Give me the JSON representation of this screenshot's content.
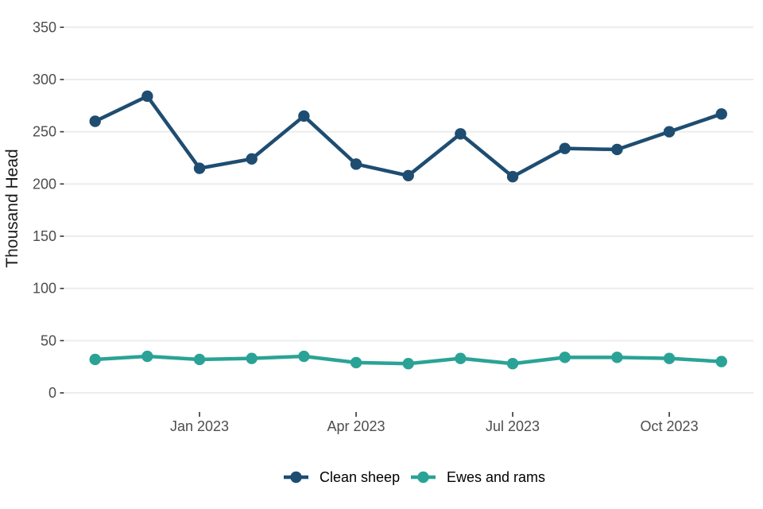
{
  "chart_data": {
    "type": "line",
    "title": "",
    "xlabel": "",
    "ylabel": "Thousand Head",
    "ylim": [
      0,
      350
    ],
    "yticks": [
      0,
      50,
      100,
      150,
      200,
      250,
      300,
      350
    ],
    "grid": "horizontal-only",
    "legend_position": "bottom-center",
    "x": [
      "Nov 2022",
      "Dec 2022",
      "Jan 2023",
      "Feb 2023",
      "Mar 2023",
      "Apr 2023",
      "May 2023",
      "Jun 2023",
      "Jul 2023",
      "Aug 2023",
      "Sep 2023",
      "Oct 2023",
      "Nov 2023"
    ],
    "xtick_labels": [
      {
        "label": "Jan 2023",
        "index": 2
      },
      {
        "label": "Apr 2023",
        "index": 5
      },
      {
        "label": "Jul 2023",
        "index": 8
      },
      {
        "label": "Oct 2023",
        "index": 11
      }
    ],
    "series": [
      {
        "name": "Clean sheep",
        "color": "#1e4d71",
        "values": [
          260,
          284,
          215,
          224,
          265,
          219,
          208,
          248,
          207,
          234,
          233,
          250,
          267
        ]
      },
      {
        "name": "Ewes and rams",
        "color": "#2aa396",
        "values": [
          32,
          35,
          32,
          33,
          35,
          29,
          28,
          33,
          28,
          34,
          34,
          33,
          30
        ]
      }
    ],
    "colors": {
      "background": "#ffffff",
      "gridline": "#ececec",
      "tick_mark": "#333333",
      "tick_label": "#4d4d4d",
      "axis_title": "#1a1a1a",
      "legend_text": "#000000"
    }
  }
}
